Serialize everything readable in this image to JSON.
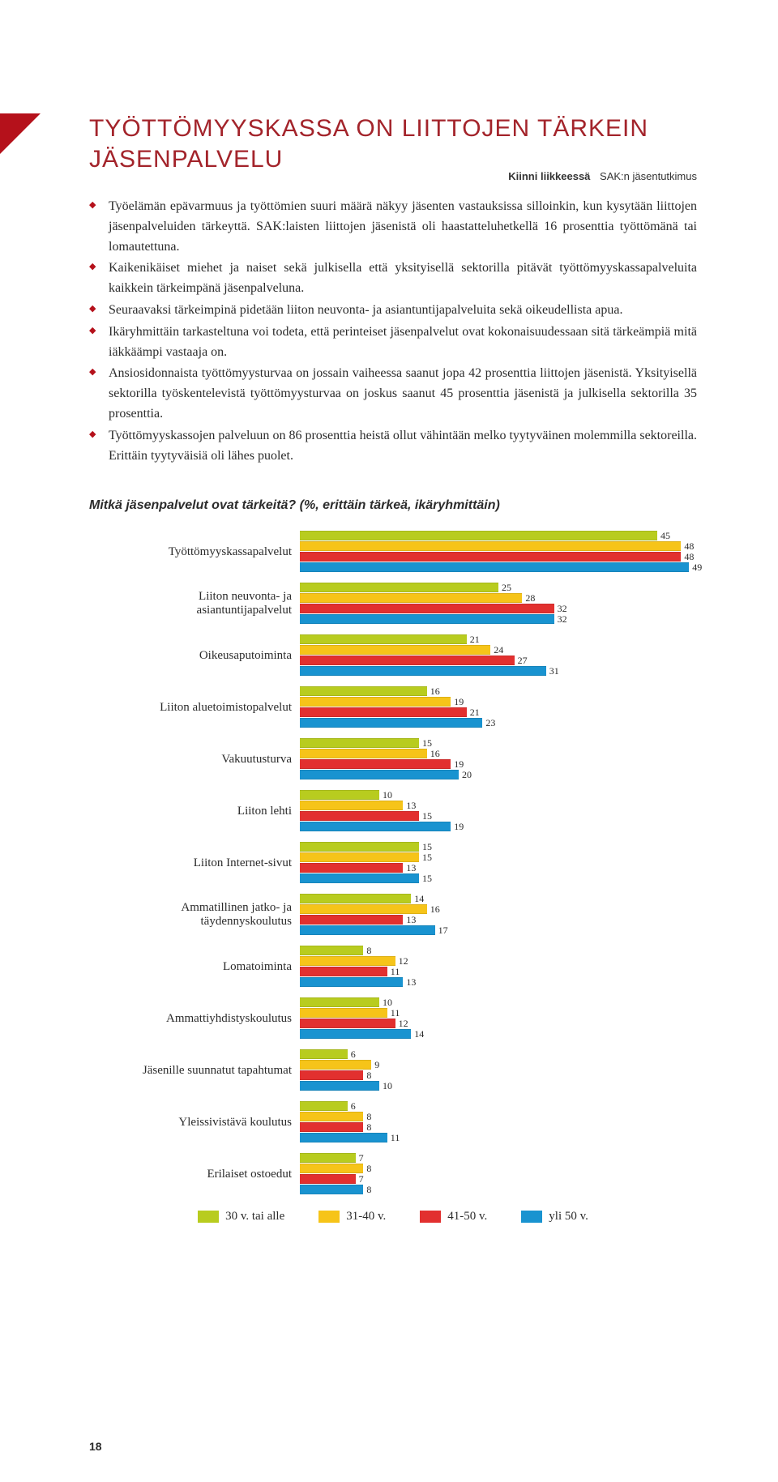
{
  "header": {
    "bold": "Kiinni liikkeessä",
    "light": "SAK:n jäsentutkimus"
  },
  "title": "TYÖTTÖMYYSKASSA ON LIITTOJEN TÄRKEIN JÄSENPALVELU",
  "bullets": [
    "Työelämän epävarmuus ja työttömien suuri määrä näkyy jäsenten vastauksissa silloinkin, kun kysytään liittojen jäsenpalveluiden tärkeyttä. SAK:laisten liittojen jäsenistä oli haastatteluhetkellä 16 prosenttia työttömänä tai lomautettuna.",
    "Kaikenikäiset miehet ja naiset sekä julkisella että yksityisellä sektorilla pitävät työttömyyskassapalveluita kaikkein tärkeimpänä jäsenpalveluna.",
    "Seuraavaksi tärkeimpinä pidetään liiton neuvonta- ja asiantuntijapalveluita sekä oikeudellista apua.",
    "Ikäryhmittäin tarkasteltuna voi todeta, että perinteiset jäsenpalvelut ovat kokonaisuudessaan sitä tärkeämpiä mitä iäkkäämpi vastaaja on.",
    "Ansiosidonnaista työttömyysturvaa on jossain vaiheessa saanut jopa 42 prosenttia liittojen jäsenistä. Yksityisellä sektorilla työskentelevistä työttömyysturvaa on joskus saanut 45 prosenttia jäsenistä ja julkisella sektorilla 35 prosenttia.",
    "Työttömyyskassojen palveluun on 86 prosenttia heistä ollut vähintään melko tyytyväinen molemmilla sektoreilla. Erittäin tyytyväisiä oli lähes puolet."
  ],
  "chart": {
    "title": "Mitkä jäsenpalvelut ovat tärkeitä? (%, erittäin tärkeä, ikäryhmittäin)",
    "max": 50,
    "colors": [
      "#b8cc1f",
      "#f6c419",
      "#e2302f",
      "#1993d0"
    ],
    "legend": [
      "30 v. tai alle",
      "31-40 v.",
      "41-50 v.",
      "yli 50 v."
    ],
    "rows": [
      {
        "label": "Työttömyyskassapalvelut",
        "values": [
          45,
          48,
          48,
          49
        ]
      },
      {
        "label": "Liiton neuvonta- ja asiantuntijapalvelut",
        "values": [
          25,
          28,
          32,
          32
        ]
      },
      {
        "label": "Oikeusaputoiminta",
        "values": [
          21,
          24,
          27,
          31
        ]
      },
      {
        "label": "Liiton aluetoimistopalvelut",
        "values": [
          16,
          19,
          21,
          23
        ]
      },
      {
        "label": "Vakuutusturva",
        "values": [
          15,
          16,
          19,
          20
        ]
      },
      {
        "label": "Liiton lehti",
        "values": [
          10,
          13,
          15,
          19
        ]
      },
      {
        "label": "Liiton Internet-sivut",
        "values": [
          15,
          15,
          13,
          15
        ]
      },
      {
        "label": "Ammatillinen jatko- ja täydennyskoulutus",
        "values": [
          14,
          16,
          13,
          17
        ]
      },
      {
        "label": "Lomatoiminta",
        "values": [
          8,
          12,
          11,
          13
        ]
      },
      {
        "label": "Ammattiyhdistyskoulutus",
        "values": [
          10,
          11,
          12,
          14
        ]
      },
      {
        "label": "Jäsenille suunnatut tapahtumat",
        "values": [
          6,
          9,
          8,
          10
        ]
      },
      {
        "label": "Yleissivistävä koulutus",
        "values": [
          6,
          8,
          8,
          11
        ]
      },
      {
        "label": "Erilaiset ostoedut",
        "values": [
          7,
          8,
          7,
          8
        ]
      }
    ]
  },
  "pageNumber": "18"
}
